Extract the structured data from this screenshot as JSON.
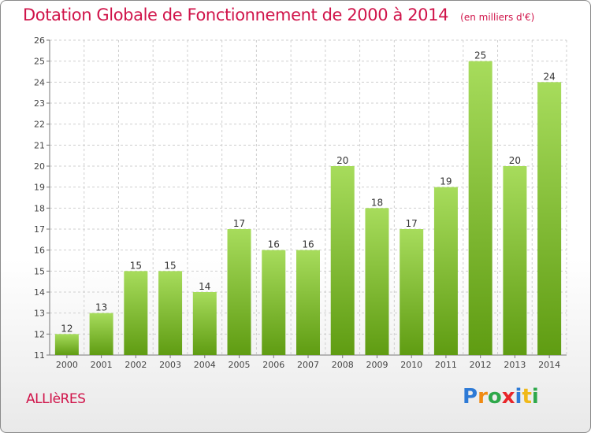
{
  "header": {
    "title": "Dotation Globale de Fonctionnement de 2000 à 2014",
    "unit": "(en milliers d'€)"
  },
  "footer": {
    "commune": "ALLIèRES",
    "logo_letters": [
      "P",
      "r",
      "o",
      "x",
      "i",
      "t",
      "i"
    ],
    "logo_colors": [
      "#2d7ad6",
      "#f08a12",
      "#2ea84a",
      "#e8262a",
      "#2d7ad6",
      "#f0b91a",
      "#2ea84a"
    ]
  },
  "colors": {
    "bar_top": "#a7dc5c",
    "bar_bottom": "#5f9c12",
    "grid": "#cfcfcf",
    "axis_text": "#444444",
    "label_text": "#333333"
  },
  "chart_data": {
    "type": "bar",
    "title": "Dotation Globale de Fonctionnement de 2000 à 2014",
    "subtitle": "(en milliers d'€)",
    "categories": [
      "2000",
      "2001",
      "2002",
      "2003",
      "2004",
      "2005",
      "2006",
      "2007",
      "2008",
      "2009",
      "2010",
      "2011",
      "2012",
      "2013",
      "2014"
    ],
    "values": [
      12,
      13,
      15,
      15,
      14,
      17,
      16,
      16,
      20,
      18,
      17,
      19,
      25,
      20,
      24
    ],
    "ylim": [
      11,
      26
    ],
    "yticks": [
      11,
      12,
      13,
      14,
      15,
      16,
      17,
      18,
      19,
      20,
      21,
      22,
      23,
      24,
      25,
      26
    ],
    "grid": true,
    "legend": "none"
  }
}
